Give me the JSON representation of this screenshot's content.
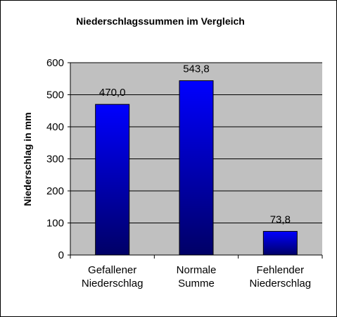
{
  "chart_data": {
    "type": "bar",
    "title": "Niederschlagssummen  im Vergleich",
    "xlabel": "",
    "ylabel": "Niederschlag in mm",
    "categories": [
      [
        "Gefallener",
        "Niederschlag"
      ],
      [
        "Normale",
        "Summe"
      ],
      [
        "Fehlender",
        "Niederschlag"
      ]
    ],
    "values": [
      470.0,
      543.8,
      73.8
    ],
    "data_labels": [
      "470,0",
      "543,8",
      "73,8"
    ],
    "ylim": [
      0,
      600
    ],
    "yticks": [
      0,
      100,
      200,
      300,
      400,
      500,
      600
    ],
    "ytick_labels": [
      "0",
      "100",
      "200",
      "300",
      "400",
      "500",
      "600"
    ],
    "grid": true,
    "legend": "none"
  },
  "colors": {
    "plot_background": "#c0c0c0",
    "bar_top": "#0000ff",
    "bar_bottom": "#000066",
    "gridline": "#000000"
  }
}
